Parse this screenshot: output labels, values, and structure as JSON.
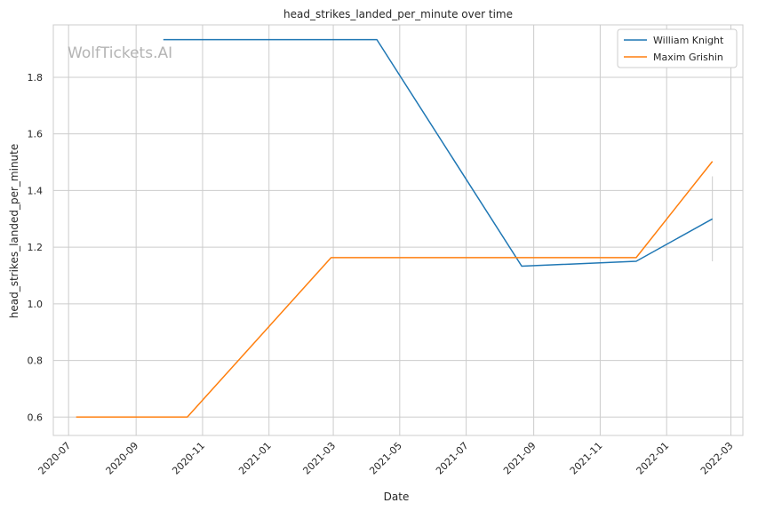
{
  "chart_data": {
    "type": "line",
    "title": "head_strikes_landed_per_minute over time",
    "xlabel": "Date",
    "ylabel": "head_strikes_landed_per_minute",
    "watermark": "WolfTickets.AI",
    "x_ticks": [
      "2020-07",
      "2020-09",
      "2020-11",
      "2021-01",
      "2021-03",
      "2021-05",
      "2021-07",
      "2021-09",
      "2021-11",
      "2022-01",
      "2022-03"
    ],
    "y_ticks": [
      "0.6",
      "0.8",
      "1.0",
      "1.2",
      "1.4",
      "1.6",
      "1.8"
    ],
    "xlim": [
      "2020-06-17",
      "2022-03-12"
    ],
    "ylim": [
      0.535,
      1.985
    ],
    "grid": true,
    "legend_position": "top-right",
    "series": [
      {
        "name": "William Knight",
        "color": "#1f77b4",
        "points": [
          {
            "x": "2020-09-26",
            "y": 1.933
          },
          {
            "x": "2021-04-10",
            "y": 1.933
          },
          {
            "x": "2021-08-21",
            "y": 1.133
          },
          {
            "x": "2021-12-04",
            "y": 1.15
          },
          {
            "x": "2022-02-12",
            "y": 1.3
          }
        ]
      },
      {
        "name": "Maxim Grishin",
        "color": "#ff7f0e",
        "points": [
          {
            "x": "2020-07-08",
            "y": 0.6
          },
          {
            "x": "2020-10-18",
            "y": 0.6
          },
          {
            "x": "2021-02-27",
            "y": 1.163
          },
          {
            "x": "2021-12-04",
            "y": 1.163
          },
          {
            "x": "2022-02-12",
            "y": 1.503
          }
        ]
      }
    ],
    "error_bar": {
      "x": "2022-02-12",
      "y_low": 1.15,
      "y_high": 1.45,
      "color": "#cccccc"
    }
  }
}
